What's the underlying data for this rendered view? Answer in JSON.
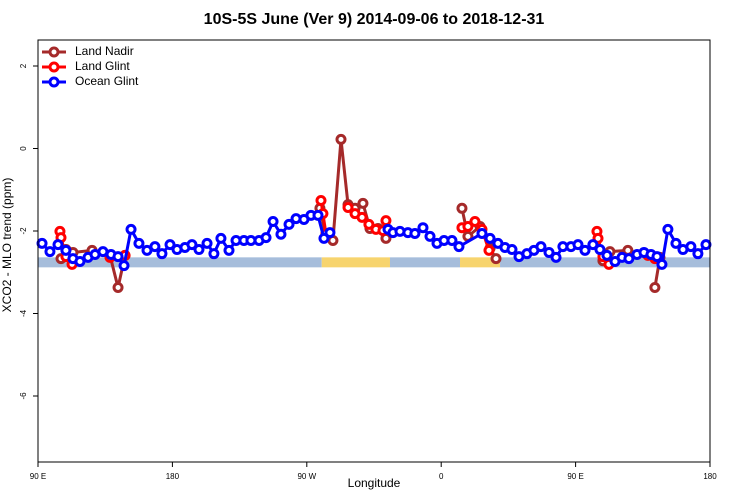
{
  "chart_data": {
    "type": "line",
    "title": "10S-5S June (Ver 9)   2014-09-06 to 2018-12-31",
    "x_label": "Longitude",
    "y_label": "XCO2 - MLO trend (ppm)",
    "xlim": [
      90,
      540
    ],
    "ylim": [
      -7.6,
      2.63
    ],
    "xticks": [
      {
        "value": 90,
        "label": "90 E"
      },
      180,
      {
        "value": 270,
        "label": "90 W"
      },
      {
        "value": 360,
        "label": "0"
      },
      {
        "value": 450,
        "label": "90 E"
      },
      {
        "value": 540,
        "label": "180"
      }
    ],
    "yticks": [
      2,
      0,
      -2,
      -4,
      -6
    ],
    "legend": "top-left",
    "surface_band": {
      "y": -2.76,
      "segments": [
        {
          "x": [
            90,
            280
          ],
          "color": "#a6bddb"
        },
        {
          "x": [
            280,
            325.7
          ],
          "color": "#f7d46e"
        },
        {
          "x": [
            325.7,
            372.6
          ],
          "color": "#a6bddb"
        },
        {
          "x": [
            372.6,
            399.4
          ],
          "color": "#f7d46e"
        },
        {
          "x": [
            399.4,
            540
          ],
          "color": "#a6bddb"
        }
      ]
    },
    "series": [
      {
        "name": "Land Nadir",
        "color": "#a52a2a",
        "x": [
          105.4,
          108.7,
          113.4,
          126.2,
          138.2,
          143.6,
          148.3,
          null,
          278.8,
          282.8,
          287.5,
          292.9,
          297.6,
          302.3,
          307.6,
          312.3,
          317.7,
          323,
          null,
          373.9,
          377.9,
          386,
          392.7,
          396.7,
          null,
          468.3,
          473,
          485,
          null,
          503.1,
          506.5
        ],
        "values": [
          -2.67,
          -2.45,
          -2.52,
          -2.47,
          -2.59,
          -3.37,
          -2.59,
          null,
          -1.45,
          -2.13,
          -2.23,
          0.22,
          -1.36,
          -1.45,
          -1.33,
          -1.94,
          -1.94,
          -2.18,
          null,
          -1.45,
          -2.13,
          -1.89,
          -2.42,
          -2.67,
          null,
          -2.72,
          -2.5,
          -2.47,
          null,
          -3.37,
          -2.64
        ]
      },
      {
        "name": "Land Glint",
        "color": "#ff0000",
        "x": [
          104.7,
          105.4,
          108.7,
          112.8,
          null,
          138.2,
          148.3,
          null,
          279.5,
          280.8,
          282.8,
          null,
          297.6,
          302.3,
          307,
          311.6,
          316.3,
          321,
          323,
          null,
          373.9,
          377.9,
          382.6,
          387.3,
          392,
          null,
          464.3,
          465,
          468.3,
          472.3,
          null,
          498.4,
          503.1
        ],
        "values": [
          -2.01,
          -2.16,
          -2.62,
          -2.81,
          null,
          -2.64,
          -2.59,
          null,
          -1.26,
          -1.58,
          -2.06,
          null,
          -1.43,
          -1.58,
          -1.67,
          -1.84,
          -1.96,
          -1.99,
          -1.75,
          null,
          -1.92,
          -1.89,
          -1.77,
          -1.96,
          -2.47,
          null,
          -2.01,
          -2.18,
          -2.62,
          -2.81,
          null,
          -2.59,
          -2.67
        ]
      },
      {
        "name": "Ocean Glint",
        "color": "#0000ff",
        "x": [
          92.7,
          98,
          103.4,
          108.7,
          113.4,
          118.1,
          123.5,
          128.2,
          133.5,
          138.9,
          143.6,
          147.6,
          152.3,
          157.6,
          163,
          168.3,
          173,
          178.4,
          183.1,
          188.4,
          193.1,
          197.8,
          203.2,
          207.8,
          212.5,
          217.9,
          222.6,
          227.9,
          232.6,
          238,
          242.7,
          247.4,
          252.7,
          258.1,
          262.8,
          268.1,
          272.8,
          277.5,
          281.5,
          285.5,
          null,
          324.4,
          327.7,
          332.4,
          337.7,
          342.4,
          347.8,
          352.5,
          357.2,
          361.9,
          367.2,
          371.9,
          387.3,
          392.7,
          398,
          402.7,
          407.4,
          412.1,
          417.4,
          422.1,
          426.8,
          432.2,
          436.9,
          441.5,
          446.9,
          451.6,
          456.3,
          461.6,
          466.3,
          471,
          476.4,
          481.1,
          485.7,
          491.1,
          495.8,
          500.5,
          504.5,
          507.8,
          511.8,
          517.2,
          521.9,
          527.2,
          531.9,
          537.3
        ],
        "values": [
          -2.3,
          -2.5,
          -2.33,
          -2.47,
          -2.67,
          -2.74,
          -2.64,
          -2.57,
          -2.5,
          -2.57,
          -2.62,
          -2.84,
          -1.96,
          -2.3,
          -2.47,
          -2.38,
          -2.55,
          -2.33,
          -2.45,
          -2.4,
          -2.33,
          -2.45,
          -2.3,
          -2.55,
          -2.18,
          -2.47,
          -2.23,
          -2.23,
          -2.23,
          -2.23,
          -2.16,
          -1.77,
          -2.08,
          -1.84,
          -1.7,
          -1.72,
          -1.62,
          -1.62,
          -2.18,
          -2.04,
          null,
          -1.96,
          -2.04,
          -2.01,
          -2.04,
          -2.06,
          -1.92,
          -2.13,
          -2.3,
          -2.23,
          -2.23,
          -2.38,
          -2.06,
          -2.18,
          -2.3,
          -2.4,
          -2.45,
          -2.62,
          -2.55,
          -2.47,
          -2.38,
          -2.52,
          -2.64,
          -2.38,
          -2.38,
          -2.33,
          -2.47,
          -2.33,
          -2.45,
          -2.59,
          -2.74,
          -2.64,
          -2.67,
          -2.57,
          -2.52,
          -2.57,
          -2.62,
          -2.81,
          -1.96,
          -2.3,
          -2.45,
          -2.38,
          -2.55,
          -2.33
        ]
      }
    ]
  }
}
